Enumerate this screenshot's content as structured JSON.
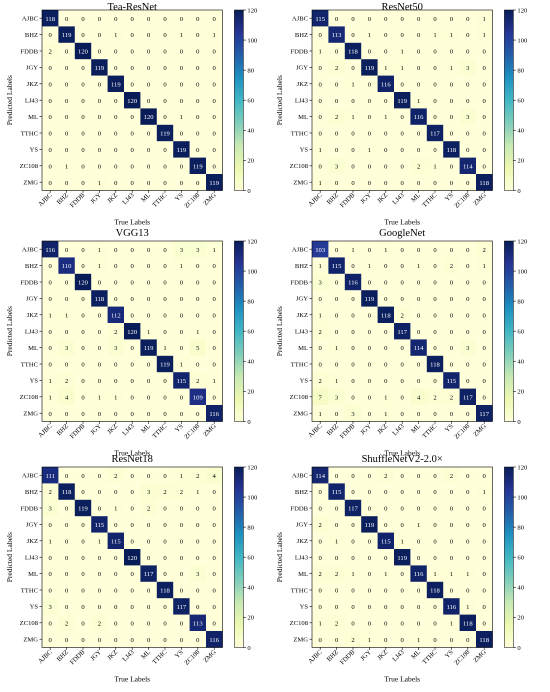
{
  "chart_data": [
    {
      "type": "heatmap",
      "title": "Tea-ResNet",
      "xlabel": "True Labels",
      "ylabel": "Predicted Labels",
      "categories": [
        "AJBC",
        "BHZ",
        "FDDB",
        "JGY",
        "JKZ",
        "LJ43",
        "ML",
        "TTHC",
        "YS",
        "ZC108",
        "ZMG"
      ],
      "colorbar_ticks": [
        0,
        20,
        40,
        60,
        80,
        100,
        120
      ],
      "color_range": [
        0,
        120
      ],
      "matrix": [
        [
          118,
          0,
          0,
          0,
          0,
          0,
          0,
          0,
          0,
          0,
          0
        ],
        [
          0,
          119,
          0,
          0,
          1,
          0,
          0,
          0,
          1,
          0,
          1
        ],
        [
          2,
          0,
          120,
          0,
          0,
          0,
          0,
          0,
          0,
          0,
          0
        ],
        [
          0,
          0,
          0,
          119,
          0,
          0,
          0,
          0,
          0,
          0,
          0
        ],
        [
          0,
          0,
          0,
          0,
          119,
          0,
          0,
          0,
          0,
          0,
          0
        ],
        [
          0,
          0,
          0,
          0,
          0,
          120,
          0,
          0,
          0,
          0,
          0
        ],
        [
          0,
          0,
          0,
          0,
          0,
          0,
          120,
          0,
          1,
          0,
          0
        ],
        [
          0,
          0,
          0,
          0,
          0,
          0,
          0,
          119,
          0,
          0,
          0
        ],
        [
          0,
          0,
          0,
          0,
          0,
          0,
          0,
          0,
          119,
          0,
          0
        ],
        [
          0,
          1,
          0,
          0,
          0,
          0,
          0,
          0,
          0,
          119,
          0
        ],
        [
          0,
          0,
          0,
          1,
          0,
          0,
          0,
          0,
          0,
          0,
          119
        ]
      ]
    },
    {
      "type": "heatmap",
      "title": "ResNet50",
      "xlabel": "True Labels",
      "ylabel": "Predicted Labels",
      "categories": [
        "AJBC",
        "BHZ",
        "FDDB",
        "JGY",
        "JKZ",
        "LJ43",
        "ML",
        "TTHC",
        "YS",
        "ZC108",
        "ZMG"
      ],
      "colorbar_ticks": [
        0,
        20,
        40,
        60,
        80,
        100,
        120
      ],
      "color_range": [
        0,
        120
      ],
      "matrix": [
        [
          115,
          0,
          0,
          0,
          0,
          0,
          0,
          0,
          0,
          0,
          1
        ],
        [
          0,
          113,
          0,
          1,
          0,
          0,
          0,
          1,
          1,
          0,
          1
        ],
        [
          1,
          0,
          118,
          0,
          0,
          1,
          0,
          0,
          0,
          0,
          0
        ],
        [
          0,
          2,
          0,
          119,
          1,
          1,
          0,
          0,
          1,
          3,
          0
        ],
        [
          0,
          0,
          1,
          0,
          116,
          0,
          0,
          0,
          0,
          0,
          0
        ],
        [
          0,
          0,
          0,
          0,
          0,
          119,
          1,
          0,
          0,
          0,
          0
        ],
        [
          0,
          2,
          1,
          0,
          1,
          0,
          116,
          0,
          0,
          3,
          0
        ],
        [
          0,
          0,
          0,
          0,
          0,
          0,
          0,
          117,
          0,
          0,
          0
        ],
        [
          1,
          0,
          0,
          1,
          0,
          0,
          0,
          0,
          118,
          0,
          0
        ],
        [
          0,
          3,
          0,
          0,
          0,
          0,
          2,
          1,
          0,
          114,
          0
        ],
        [
          1,
          0,
          0,
          0,
          0,
          0,
          0,
          0,
          0,
          0,
          118
        ]
      ]
    },
    {
      "type": "heatmap",
      "title": "VGG13",
      "xlabel": "True Labels",
      "ylabel": "Predicted Labels",
      "categories": [
        "AJBC",
        "BHZ",
        "FDDB",
        "JGY",
        "JKZ",
        "LJ43",
        "ML",
        "TTHC",
        "YS",
        "ZC108",
        "ZMG"
      ],
      "colorbar_ticks": [
        0,
        20,
        40,
        60,
        80,
        100,
        120
      ],
      "color_range": [
        0,
        120
      ],
      "matrix": [
        [
          116,
          0,
          0,
          1,
          0,
          0,
          0,
          0,
          3,
          3,
          1
        ],
        [
          0,
          110,
          0,
          1,
          0,
          0,
          0,
          0,
          1,
          0,
          0
        ],
        [
          0,
          0,
          120,
          0,
          0,
          0,
          0,
          0,
          0,
          0,
          0
        ],
        [
          0,
          0,
          0,
          118,
          0,
          0,
          0,
          0,
          0,
          0,
          0
        ],
        [
          1,
          1,
          0,
          0,
          112,
          0,
          0,
          0,
          0,
          0,
          0
        ],
        [
          0,
          0,
          0,
          0,
          2,
          120,
          1,
          0,
          0,
          1,
          0
        ],
        [
          0,
          3,
          0,
          0,
          3,
          0,
          119,
          1,
          0,
          5,
          0
        ],
        [
          0,
          0,
          0,
          0,
          0,
          0,
          0,
          119,
          1,
          0,
          0
        ],
        [
          1,
          2,
          0,
          0,
          0,
          0,
          0,
          0,
          115,
          2,
          1
        ],
        [
          1,
          4,
          0,
          1,
          1,
          0,
          0,
          0,
          0,
          109,
          0
        ],
        [
          0,
          0,
          0,
          0,
          0,
          0,
          0,
          0,
          0,
          0,
          116
        ]
      ]
    },
    {
      "type": "heatmap",
      "title": "GoogleNet",
      "xlabel": "True Labels",
      "ylabel": "Predicted Labels",
      "categories": [
        "AJBC",
        "BHZ",
        "FDDB",
        "JGY",
        "JKZ",
        "LJ43",
        "ML",
        "TTHC",
        "YS",
        "ZC108",
        "ZMG"
      ],
      "colorbar_ticks": [
        0,
        20,
        40,
        60,
        80,
        100,
        120
      ],
      "color_range": [
        0,
        120
      ],
      "matrix": [
        [
          103,
          0,
          1,
          0,
          1,
          0,
          0,
          0,
          0,
          0,
          2
        ],
        [
          1,
          115,
          0,
          1,
          0,
          0,
          1,
          0,
          2,
          0,
          1
        ],
        [
          3,
          0,
          116,
          0,
          0,
          0,
          0,
          0,
          0,
          0,
          0
        ],
        [
          0,
          0,
          0,
          119,
          0,
          0,
          0,
          0,
          0,
          0,
          0
        ],
        [
          1,
          0,
          0,
          0,
          118,
          2,
          0,
          0,
          0,
          0,
          0
        ],
        [
          2,
          0,
          0,
          0,
          0,
          117,
          0,
          0,
          0,
          0,
          0
        ],
        [
          0,
          1,
          0,
          0,
          0,
          0,
          114,
          0,
          0,
          3,
          0
        ],
        [
          0,
          0,
          0,
          0,
          0,
          0,
          0,
          118,
          0,
          0,
          0
        ],
        [
          2,
          1,
          0,
          0,
          0,
          0,
          0,
          0,
          115,
          0,
          0
        ],
        [
          7,
          3,
          0,
          0,
          1,
          0,
          4,
          2,
          2,
          117,
          0
        ],
        [
          1,
          0,
          3,
          0,
          1,
          0,
          0,
          0,
          0,
          0,
          117
        ]
      ]
    },
    {
      "type": "heatmap",
      "title": "ResNet18",
      "xlabel": "True Labels",
      "ylabel": "Predicted Labels",
      "categories": [
        "AJBC",
        "BHZ",
        "FDDB",
        "JGY",
        "JKZ",
        "LJ43",
        "ML",
        "TTHC",
        "YS",
        "ZC108",
        "ZMG"
      ],
      "colorbar_ticks": [
        0,
        20,
        40,
        60,
        80,
        100,
        120
      ],
      "color_range": [
        0,
        120
      ],
      "matrix": [
        [
          111,
          0,
          0,
          0,
          2,
          0,
          0,
          0,
          1,
          2,
          4
        ],
        [
          2,
          118,
          0,
          0,
          0,
          0,
          3,
          2,
          2,
          1,
          0
        ],
        [
          3,
          0,
          119,
          0,
          1,
          0,
          2,
          0,
          0,
          0,
          0
        ],
        [
          0,
          0,
          0,
          115,
          0,
          0,
          0,
          0,
          0,
          0,
          0
        ],
        [
          1,
          0,
          0,
          1,
          115,
          0,
          0,
          0,
          0,
          0,
          0
        ],
        [
          0,
          0,
          0,
          0,
          0,
          120,
          0,
          0,
          0,
          0,
          0
        ],
        [
          0,
          0,
          0,
          0,
          0,
          0,
          117,
          0,
          0,
          3,
          0
        ],
        [
          0,
          0,
          0,
          0,
          0,
          0,
          0,
          118,
          0,
          0,
          0
        ],
        [
          3,
          0,
          0,
          0,
          0,
          0,
          0,
          0,
          117,
          0,
          0
        ],
        [
          0,
          2,
          0,
          2,
          0,
          0,
          0,
          0,
          0,
          113,
          0
        ],
        [
          0,
          0,
          0,
          0,
          0,
          0,
          0,
          0,
          0,
          0,
          116
        ]
      ]
    },
    {
      "type": "heatmap",
      "title": "ShuffleNetV2-2.0×",
      "xlabel": "True Labels",
      "ylabel": "Predicted Labels",
      "categories": [
        "AJBC",
        "BHZ",
        "FDDB",
        "JGY",
        "JKZ",
        "LJ43",
        "ML",
        "TTHC",
        "YS",
        "ZC108",
        "ZMG"
      ],
      "colorbar_ticks": [
        0,
        20,
        40,
        60,
        80,
        100,
        120
      ],
      "color_range": [
        0,
        120
      ],
      "matrix": [
        [
          114,
          0,
          0,
          0,
          2,
          0,
          0,
          0,
          2,
          0,
          0
        ],
        [
          0,
          115,
          0,
          0,
          0,
          0,
          0,
          0,
          0,
          0,
          1
        ],
        [
          0,
          0,
          117,
          0,
          0,
          0,
          0,
          0,
          0,
          0,
          0
        ],
        [
          2,
          0,
          0,
          119,
          0,
          0,
          1,
          0,
          0,
          0,
          0
        ],
        [
          0,
          1,
          0,
          0,
          115,
          1,
          0,
          0,
          0,
          0,
          0
        ],
        [
          0,
          0,
          0,
          0,
          0,
          119,
          0,
          0,
          0,
          0,
          0
        ],
        [
          2,
          2,
          1,
          0,
          1,
          0,
          116,
          1,
          1,
          1,
          0
        ],
        [
          0,
          0,
          0,
          0,
          0,
          0,
          0,
          118,
          0,
          0,
          0
        ],
        [
          0,
          0,
          0,
          0,
          0,
          0,
          0,
          0,
          116,
          1,
          0
        ],
        [
          1,
          2,
          0,
          0,
          0,
          0,
          0,
          0,
          1,
          118,
          0
        ],
        [
          0,
          0,
          2,
          1,
          0,
          0,
          1,
          0,
          0,
          0,
          118
        ]
      ]
    }
  ]
}
